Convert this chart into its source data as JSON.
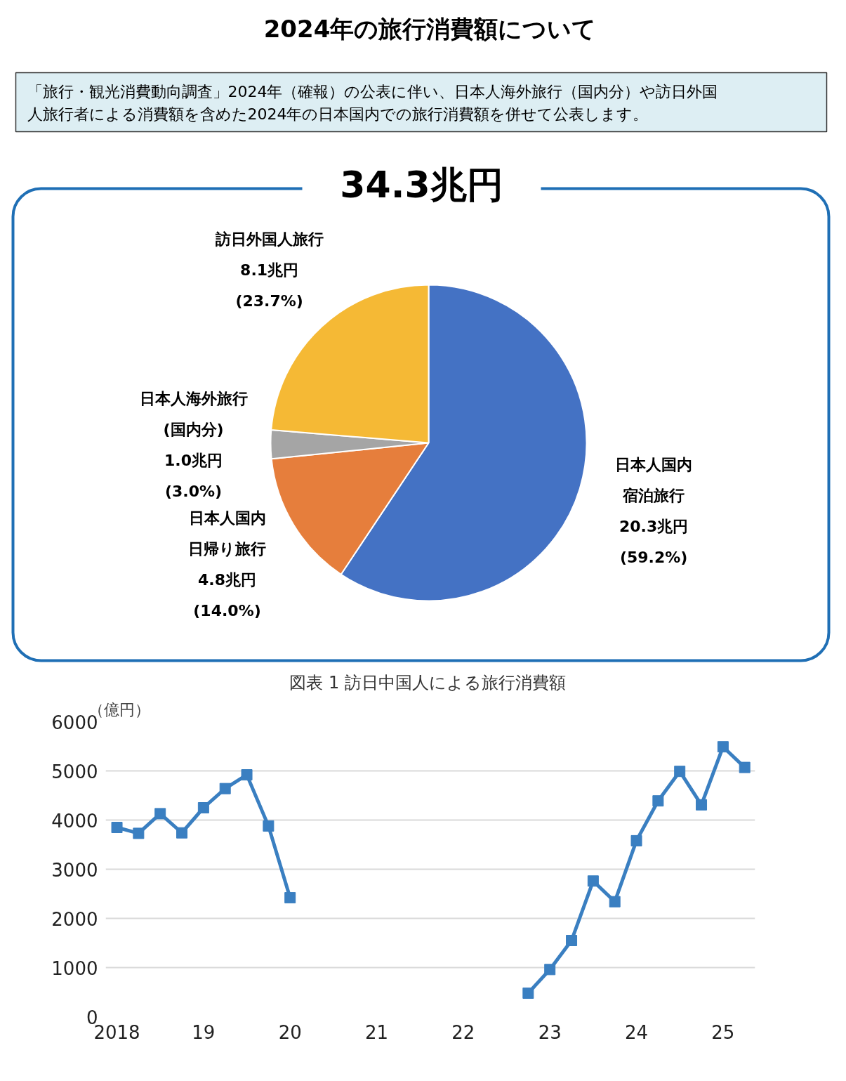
{
  "chart_data": [
    {
      "type": "pie",
      "title": "2024年の旅行消費額について",
      "subtitle": "「旅行・観光消費動向調査」2024年（確報）の公表に伴い、日本人海外旅行（国内分）や訪日外国人旅行者による消費額を含めた2024年の日本国内での旅行消費額を併せて公表します。",
      "annotations": [
        "34.3兆円"
      ],
      "categories": [
        "日本人国内宿泊旅行",
        "日本人国内日帰り旅行",
        "日本人海外旅行(国内分)",
        "訪日外国人旅行"
      ],
      "values": [
        20.3,
        4.8,
        1.0,
        8.1
      ],
      "value_labels": [
        "20.3兆円\n(59.2%)",
        "4.8兆円\n(14.0%)",
        "1.0兆円\n(3.0%)",
        "8.1兆円\n(23.7%)"
      ],
      "colors": [
        "#4472c4",
        "#e67e3c",
        "#a5a5a5",
        "#f5b935"
      ]
    },
    {
      "type": "line",
      "title": "図表 1  訪日中国人による旅行消費額",
      "ylabel": "（億円）",
      "x": [
        2018,
        2018.25,
        2018.5,
        2018.75,
        2019,
        2019.25,
        2019.5,
        2019.75,
        2020,
        2020.25,
        2020.5,
        2020.75,
        2021,
        2021.25,
        2021.5,
        2021.75,
        2022,
        2022.25,
        2022.5,
        2022.75,
        2023,
        2023.25,
        2023.5,
        2023.75,
        2024,
        2024.25,
        2024.5,
        2024.75,
        2025,
        2025.25
      ],
      "series": [
        {
          "color": "#3a7fc1",
          "values": [
            3850,
            3730,
            4130,
            3740,
            4250,
            4640,
            4920,
            3880,
            2420,
            null,
            null,
            null,
            null,
            null,
            null,
            null,
            null,
            null,
            null,
            480,
            960,
            1550,
            2760,
            2340,
            3580,
            4390,
            4990,
            4310,
            5490,
            5070
          ]
        }
      ],
      "xlim": [
        2017.87,
        2025.37
      ],
      "ylim": [
        0,
        6000
      ],
      "xticks": [
        {
          "value": 2018,
          "label": "2018"
        },
        {
          "value": 2019,
          "label": "19"
        },
        {
          "value": 2020,
          "label": "20"
        },
        {
          "value": 2021,
          "label": "21"
        },
        {
          "value": 2022,
          "label": "22"
        },
        {
          "value": 2023,
          "label": "23"
        },
        {
          "value": 2024,
          "label": "24"
        },
        {
          "value": 2025,
          "label": "25"
        }
      ],
      "yticks": [
        0,
        1000,
        2000,
        3000,
        4000,
        5000,
        6000
      ],
      "grid": "y",
      "marker": "square",
      "line_style": "solid"
    }
  ]
}
